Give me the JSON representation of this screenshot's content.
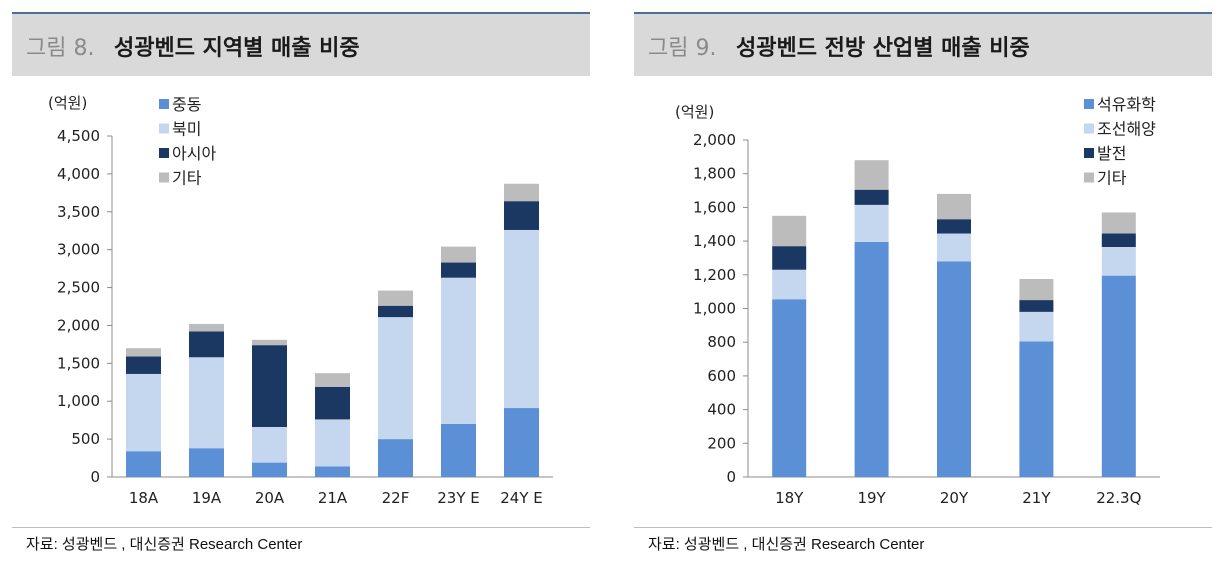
{
  "charts": [
    {
      "figure_number": "그림 8.",
      "title": "성광벤드 지역별 매출 비중",
      "source": "자료: 성광벤드 , 대신증권 Research Center"
    },
    {
      "figure_number": "그림 9.",
      "title": "성광벤드 전방 산업별 매출 비중",
      "source": "자료: 성광벤드 , 대신증권 Research Center"
    }
  ],
  "chart_data": [
    {
      "type": "bar",
      "stacked": true,
      "title": "성광벤드 지역별 매출 비중",
      "unit_label": "(억원)",
      "categories": [
        "18A",
        "19A",
        "20A",
        "21A",
        "22F",
        "23Y E",
        "24Y E"
      ],
      "series": [
        {
          "name": "중동",
          "color": "#5b8fd6",
          "values": [
            340,
            380,
            190,
            140,
            500,
            700,
            910
          ]
        },
        {
          "name": "북미",
          "color": "#c5d6ef",
          "values": [
            1020,
            1200,
            470,
            620,
            1610,
            1930,
            2350
          ]
        },
        {
          "name": "아시아",
          "color": "#1b3862",
          "values": [
            230,
            340,
            1080,
            430,
            150,
            200,
            380
          ]
        },
        {
          "name": "기타",
          "color": "#bcbcbc",
          "values": [
            110,
            100,
            70,
            180,
            200,
            210,
            230
          ]
        }
      ],
      "ylim": [
        0,
        4500
      ],
      "yticks": [
        "0",
        "500",
        "1,000",
        "1,500",
        "2,000",
        "2,500",
        "3,000",
        "3,500",
        "4,000",
        "4,500"
      ],
      "ytick_values": [
        0,
        500,
        1000,
        1500,
        2000,
        2500,
        3000,
        3500,
        4000,
        4500
      ],
      "legend_position": "top-left"
    },
    {
      "type": "bar",
      "stacked": true,
      "title": "성광벤드 전방 산업별 매출 비중",
      "unit_label": "(억원)",
      "categories": [
        "18Y",
        "19Y",
        "20Y",
        "21Y",
        "22.3Q"
      ],
      "series": [
        {
          "name": "석유화학",
          "color": "#5b8fd6",
          "values": [
            1055,
            1395,
            1280,
            805,
            1195
          ]
        },
        {
          "name": "조선해양",
          "color": "#c5d6ef",
          "values": [
            175,
            220,
            165,
            175,
            170
          ]
        },
        {
          "name": "발전",
          "color": "#1b3862",
          "values": [
            140,
            90,
            85,
            70,
            80
          ]
        },
        {
          "name": "기타",
          "color": "#bcbcbc",
          "values": [
            180,
            175,
            150,
            125,
            125
          ]
        }
      ],
      "ylim": [
        0,
        2000
      ],
      "yticks": [
        "0",
        "200",
        "400",
        "600",
        "800",
        "1,000",
        "1,200",
        "1,400",
        "1,600",
        "1,800",
        "2,000"
      ],
      "ytick_values": [
        0,
        200,
        400,
        600,
        800,
        1000,
        1200,
        1400,
        1600,
        1800,
        2000
      ],
      "legend_position": "top-right"
    }
  ]
}
